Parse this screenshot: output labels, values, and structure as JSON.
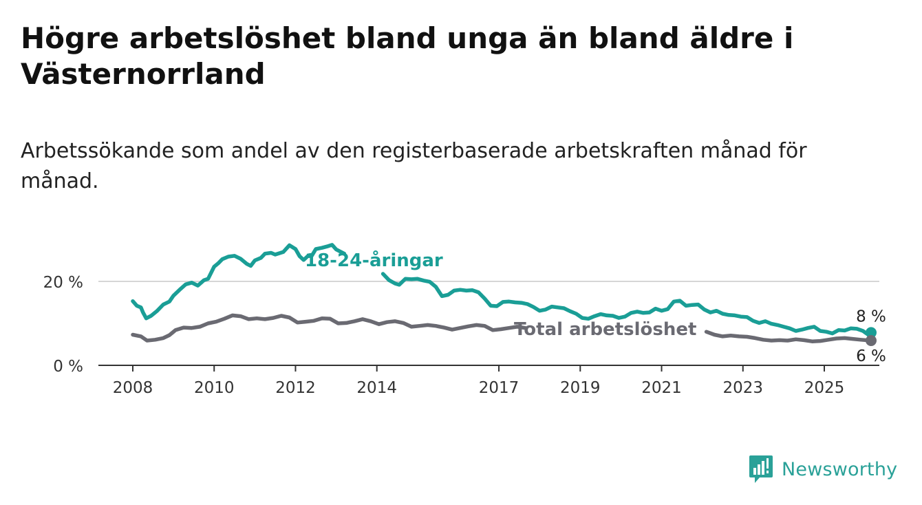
{
  "title": "Högre arbetslöshet bland unga än bland äldre i Västernorrland",
  "subtitle": "Arbetssökande som andel av den registerbaserade arbetskraften månad för månad.",
  "brand": {
    "name": "Newsworthy",
    "logo_icon": "bar-chart-with-exclamation-icon"
  },
  "colors": {
    "youth": "#1a9e96",
    "total": "#6a6a72",
    "grid": "#d6d6d6",
    "axis": "#333333"
  },
  "chart_data": {
    "type": "line",
    "title": "Högre arbetslöshet bland unga än bland äldre i Västernorrland",
    "xlabel": "",
    "ylabel": "",
    "xlim": [
      2007.9,
      2026.4
    ],
    "ylim": [
      0,
      30
    ],
    "x_ticks": [
      2008,
      2010,
      2012,
      2014,
      2017,
      2019,
      2021,
      2023,
      2025
    ],
    "y_ticks": [
      {
        "value": 0,
        "label": "0 %"
      },
      {
        "value": 20,
        "label": "20 %"
      }
    ],
    "grid": "horizontal",
    "series": [
      {
        "name": "18-24-åringar",
        "color": "#1a9e96",
        "end_label": "8 %",
        "points": [
          [
            2008.0,
            15.3
          ],
          [
            2008.1,
            14.2
          ],
          [
            2008.2,
            13.8
          ],
          [
            2008.25,
            12.6
          ],
          [
            2008.33,
            11.2
          ],
          [
            2008.45,
            11.8
          ],
          [
            2008.6,
            13.0
          ],
          [
            2008.75,
            14.5
          ],
          [
            2008.9,
            15.2
          ],
          [
            2009.0,
            16.6
          ],
          [
            2009.15,
            18.0
          ],
          [
            2009.3,
            19.3
          ],
          [
            2009.45,
            19.7
          ],
          [
            2009.6,
            19.0
          ],
          [
            2009.75,
            20.3
          ],
          [
            2009.85,
            20.6
          ],
          [
            2010.0,
            23.5
          ],
          [
            2010.1,
            24.3
          ],
          [
            2010.2,
            25.3
          ],
          [
            2010.35,
            25.9
          ],
          [
            2010.5,
            26.1
          ],
          [
            2010.65,
            25.4
          ],
          [
            2010.8,
            24.2
          ],
          [
            2010.9,
            23.7
          ],
          [
            2011.0,
            25.0
          ],
          [
            2011.15,
            25.6
          ],
          [
            2011.25,
            26.6
          ],
          [
            2011.4,
            26.8
          ],
          [
            2011.5,
            26.4
          ],
          [
            2011.6,
            26.7
          ],
          [
            2011.7,
            27.0
          ],
          [
            2011.85,
            28.6
          ],
          [
            2012.0,
            27.7
          ],
          [
            2012.1,
            26.0
          ],
          [
            2012.2,
            25.1
          ],
          [
            2012.3,
            26.0
          ],
          [
            2012.4,
            26.1
          ],
          [
            2012.5,
            27.7
          ],
          [
            2012.65,
            28.0
          ],
          [
            2012.8,
            28.4
          ],
          [
            2012.9,
            28.7
          ],
          [
            2013.0,
            27.6
          ],
          [
            2013.2,
            26.6
          ],
          [
            2014.15,
            21.8
          ],
          [
            2014.3,
            20.3
          ],
          [
            2014.45,
            19.5
          ],
          [
            2014.55,
            19.2
          ],
          [
            2014.7,
            20.6
          ],
          [
            2014.85,
            20.5
          ],
          [
            2015.0,
            20.6
          ],
          [
            2015.15,
            20.2
          ],
          [
            2015.3,
            19.9
          ],
          [
            2015.45,
            18.7
          ],
          [
            2015.6,
            16.5
          ],
          [
            2015.75,
            16.8
          ],
          [
            2015.9,
            17.8
          ],
          [
            2016.05,
            18.0
          ],
          [
            2016.2,
            17.8
          ],
          [
            2016.35,
            17.9
          ],
          [
            2016.5,
            17.4
          ],
          [
            2016.65,
            15.9
          ],
          [
            2016.8,
            14.2
          ],
          [
            2016.95,
            14.1
          ],
          [
            2017.1,
            15.1
          ],
          [
            2017.25,
            15.2
          ],
          [
            2017.4,
            15.0
          ],
          [
            2017.55,
            14.9
          ],
          [
            2017.7,
            14.6
          ],
          [
            2017.85,
            13.9
          ],
          [
            2018.0,
            13.0
          ],
          [
            2018.15,
            13.3
          ],
          [
            2018.3,
            14.0
          ],
          [
            2018.45,
            13.8
          ],
          [
            2018.6,
            13.6
          ],
          [
            2018.75,
            12.9
          ],
          [
            2018.9,
            12.3
          ],
          [
            2019.05,
            11.3
          ],
          [
            2019.2,
            11.1
          ],
          [
            2019.35,
            11.7
          ],
          [
            2019.5,
            12.2
          ],
          [
            2019.65,
            11.9
          ],
          [
            2019.8,
            11.8
          ],
          [
            2019.95,
            11.3
          ],
          [
            2020.1,
            11.6
          ],
          [
            2020.25,
            12.5
          ],
          [
            2020.4,
            12.8
          ],
          [
            2020.55,
            12.5
          ],
          [
            2020.7,
            12.6
          ],
          [
            2020.85,
            13.5
          ],
          [
            2021.0,
            13.0
          ],
          [
            2021.15,
            13.4
          ],
          [
            2021.3,
            15.2
          ],
          [
            2021.45,
            15.4
          ],
          [
            2021.6,
            14.2
          ],
          [
            2021.75,
            14.4
          ],
          [
            2021.9,
            14.5
          ],
          [
            2022.05,
            13.3
          ],
          [
            2022.2,
            12.6
          ],
          [
            2022.35,
            13.0
          ],
          [
            2022.5,
            12.3
          ],
          [
            2022.65,
            12.0
          ],
          [
            2022.8,
            11.9
          ],
          [
            2022.95,
            11.6
          ],
          [
            2023.1,
            11.5
          ],
          [
            2023.25,
            10.6
          ],
          [
            2023.4,
            10.1
          ],
          [
            2023.55,
            10.5
          ],
          [
            2023.7,
            9.9
          ],
          [
            2023.85,
            9.6
          ],
          [
            2024.0,
            9.2
          ],
          [
            2024.15,
            8.8
          ],
          [
            2024.3,
            8.2
          ],
          [
            2024.45,
            8.5
          ],
          [
            2024.6,
            8.9
          ],
          [
            2024.75,
            9.2
          ],
          [
            2024.9,
            8.2
          ],
          [
            2025.05,
            8.0
          ],
          [
            2025.2,
            7.6
          ],
          [
            2025.35,
            8.4
          ],
          [
            2025.5,
            8.3
          ],
          [
            2025.65,
            8.8
          ],
          [
            2025.8,
            8.7
          ],
          [
            2025.95,
            8.2
          ],
          [
            2026.05,
            7.5
          ],
          [
            2026.15,
            7.8
          ]
        ]
      },
      {
        "name": "Total arbetslöshet",
        "color": "#6a6a72",
        "end_label": "6 %",
        "points": [
          [
            2008.0,
            7.3
          ],
          [
            2008.2,
            6.9
          ],
          [
            2008.35,
            5.9
          ],
          [
            2008.55,
            6.1
          ],
          [
            2008.75,
            6.5
          ],
          [
            2008.9,
            7.2
          ],
          [
            2009.05,
            8.4
          ],
          [
            2009.25,
            9.0
          ],
          [
            2009.45,
            8.9
          ],
          [
            2009.65,
            9.2
          ],
          [
            2009.85,
            10.0
          ],
          [
            2010.05,
            10.4
          ],
          [
            2010.25,
            11.1
          ],
          [
            2010.45,
            11.9
          ],
          [
            2010.65,
            11.7
          ],
          [
            2010.85,
            11.0
          ],
          [
            2011.05,
            11.2
          ],
          [
            2011.25,
            11.0
          ],
          [
            2011.45,
            11.3
          ],
          [
            2011.65,
            11.8
          ],
          [
            2011.85,
            11.4
          ],
          [
            2012.05,
            10.2
          ],
          [
            2012.25,
            10.4
          ],
          [
            2012.45,
            10.6
          ],
          [
            2012.65,
            11.2
          ],
          [
            2012.85,
            11.1
          ],
          [
            2013.05,
            10.0
          ],
          [
            2013.25,
            10.1
          ],
          [
            2013.45,
            10.5
          ],
          [
            2013.65,
            11.0
          ],
          [
            2013.85,
            10.5
          ],
          [
            2014.05,
            9.8
          ],
          [
            2014.25,
            10.3
          ],
          [
            2014.45,
            10.5
          ],
          [
            2014.65,
            10.1
          ],
          [
            2014.85,
            9.2
          ],
          [
            2015.05,
            9.4
          ],
          [
            2015.25,
            9.6
          ],
          [
            2015.45,
            9.4
          ],
          [
            2015.65,
            9.0
          ],
          [
            2015.85,
            8.5
          ],
          [
            2016.05,
            8.9
          ],
          [
            2016.25,
            9.3
          ],
          [
            2016.45,
            9.6
          ],
          [
            2016.65,
            9.4
          ],
          [
            2016.85,
            8.4
          ],
          [
            2017.05,
            8.6
          ],
          [
            2017.25,
            8.9
          ],
          [
            2017.45,
            9.2
          ],
          [
            2017.65,
            8.9
          ],
          [
            2022.1,
            8.0
          ],
          [
            2022.3,
            7.3
          ],
          [
            2022.5,
            6.9
          ],
          [
            2022.7,
            7.1
          ],
          [
            2022.9,
            6.9
          ],
          [
            2023.1,
            6.8
          ],
          [
            2023.3,
            6.5
          ],
          [
            2023.5,
            6.1
          ],
          [
            2023.7,
            5.9
          ],
          [
            2023.9,
            6.0
          ],
          [
            2024.1,
            5.9
          ],
          [
            2024.3,
            6.2
          ],
          [
            2024.5,
            6.0
          ],
          [
            2024.7,
            5.7
          ],
          [
            2024.9,
            5.8
          ],
          [
            2025.1,
            6.1
          ],
          [
            2025.3,
            6.4
          ],
          [
            2025.5,
            6.5
          ],
          [
            2025.7,
            6.3
          ],
          [
            2025.9,
            6.1
          ],
          [
            2026.15,
            5.9
          ]
        ]
      }
    ]
  }
}
